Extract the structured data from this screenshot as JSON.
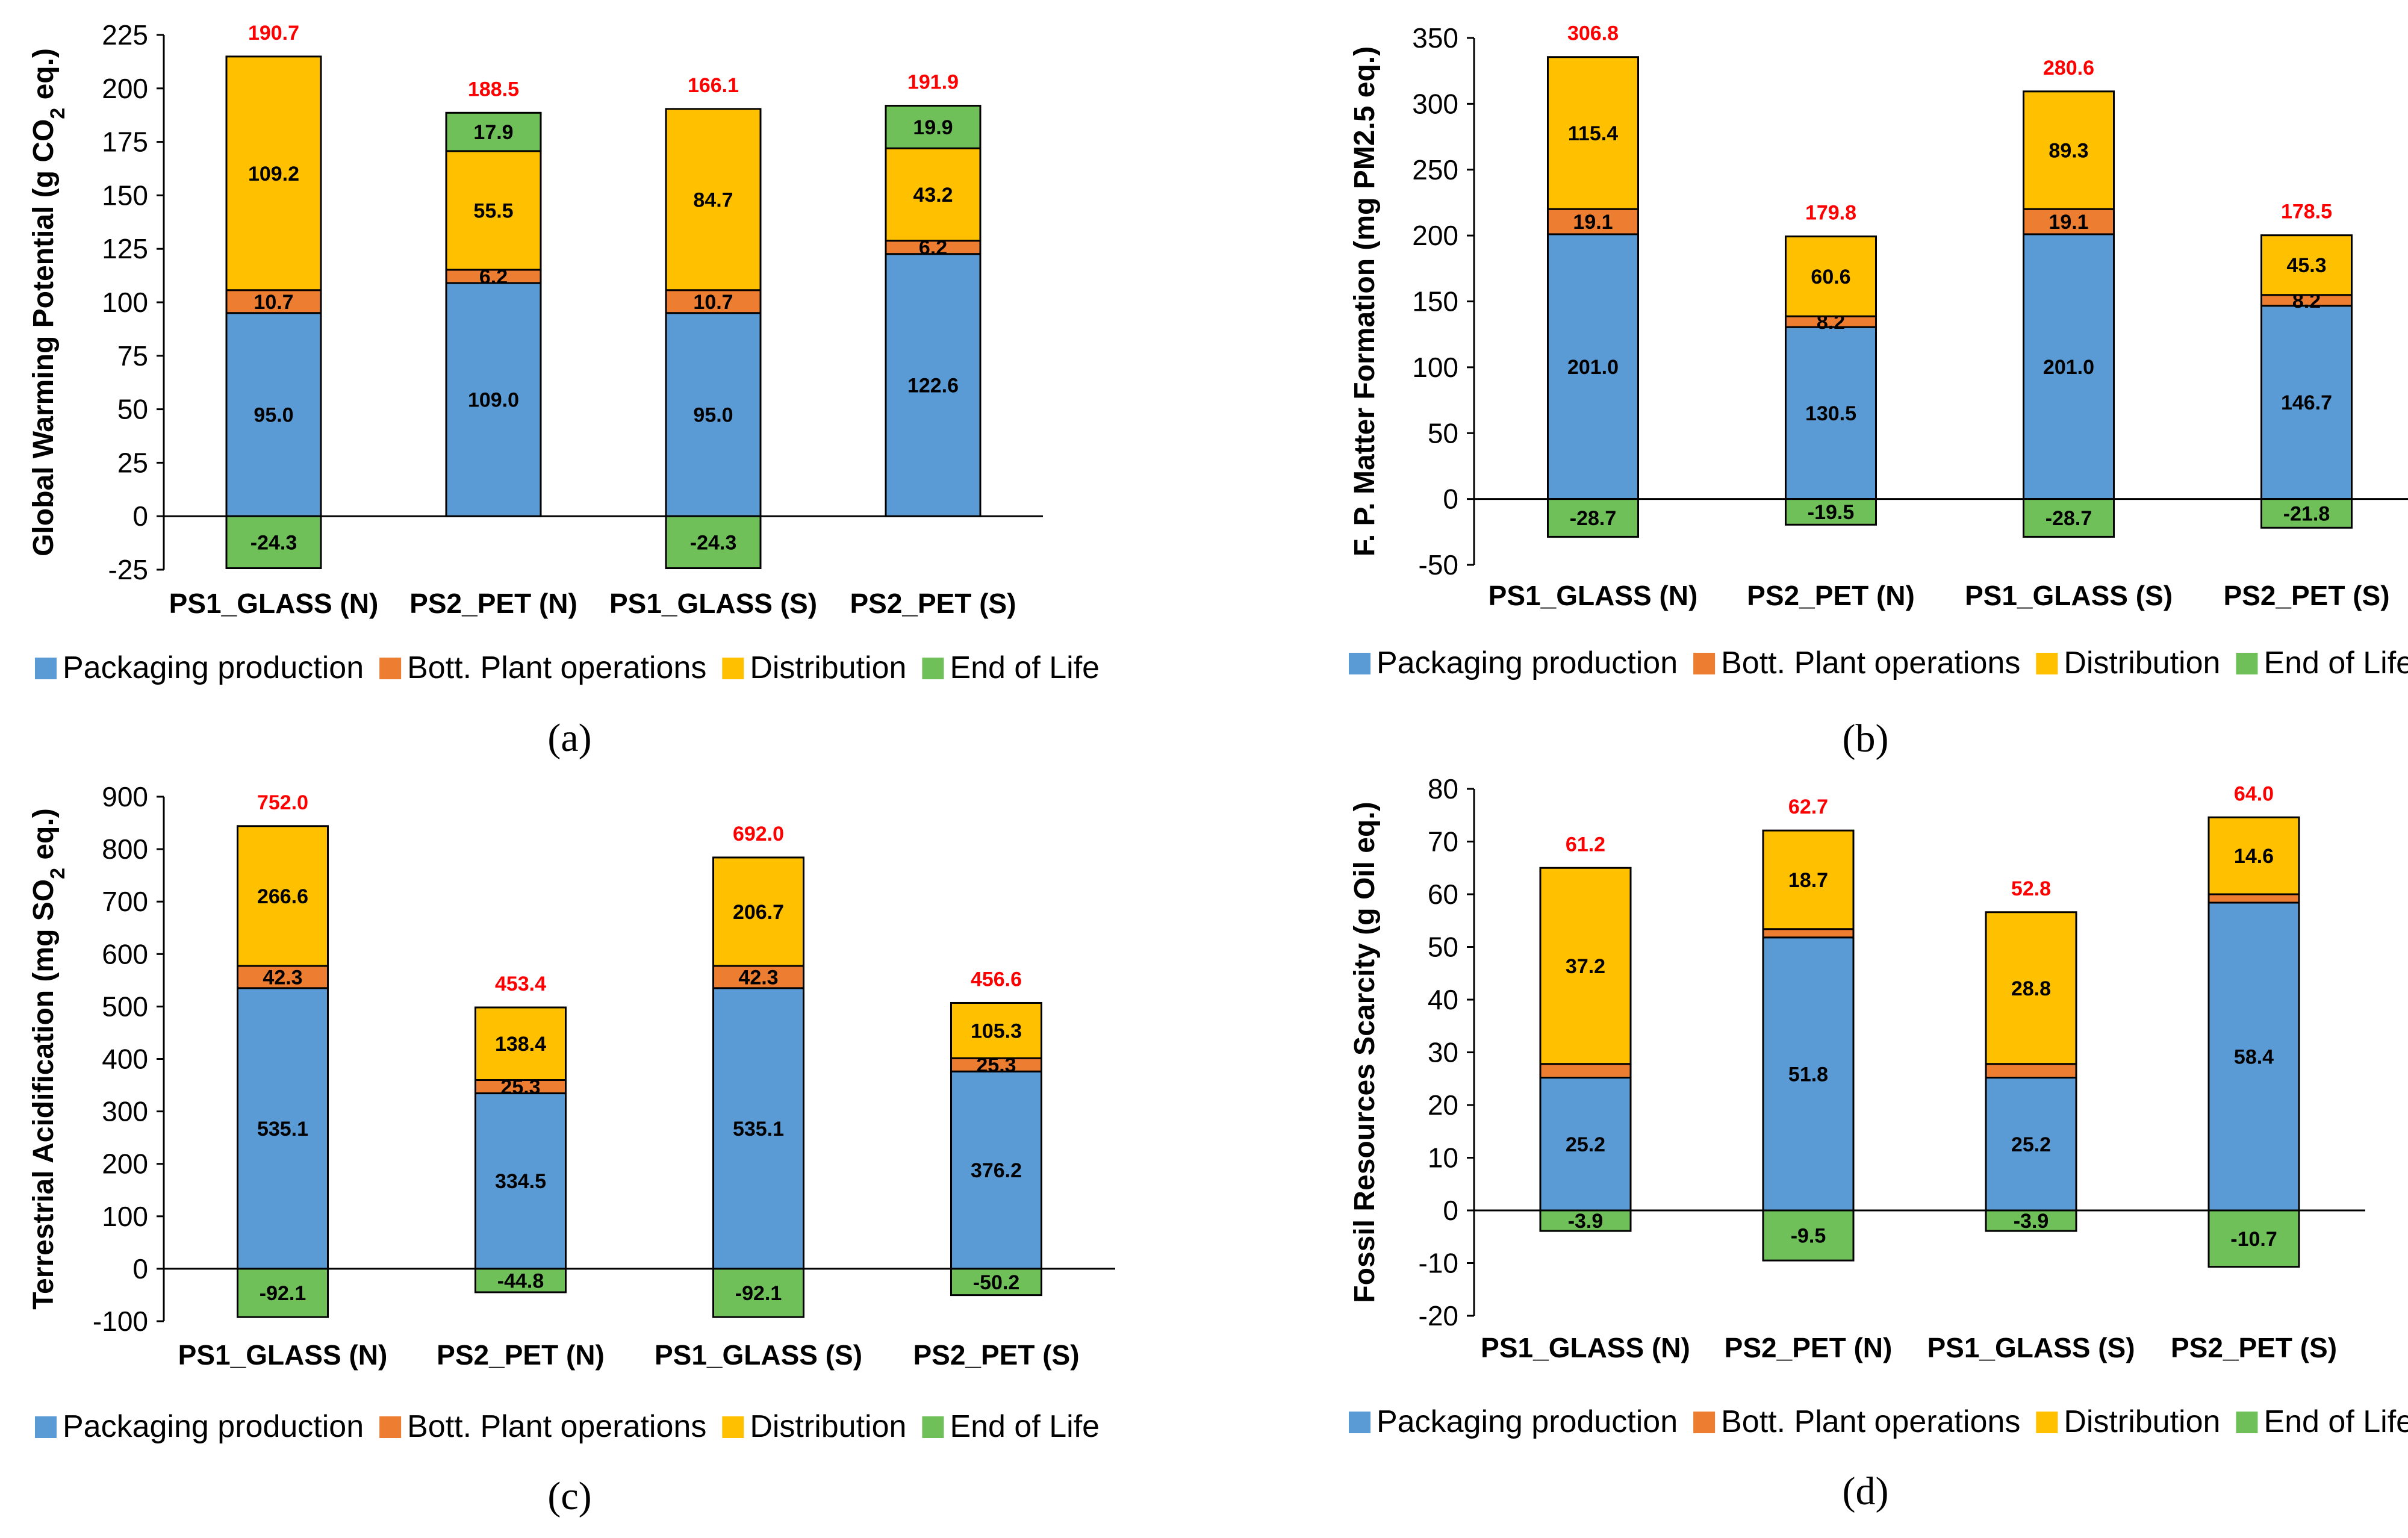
{
  "legend": [
    {
      "name": "Packaging production",
      "color": "#5b9bd5"
    },
    {
      "name": "Bott. Plant operations",
      "color": "#ed7d31"
    },
    {
      "name": "Distribution",
      "color": "#ffc000"
    },
    {
      "name": "End of Life",
      "color": "#70c05a"
    }
  ],
  "chart_data": [
    {
      "type": "bar",
      "panel": "(a)",
      "ylabel_html": "Global Warming Potential (g CO<tspan baseline-shift=\"sub\" font-size=\"34\">2</tspan> eq.)",
      "ylim": [
        -25,
        225
      ],
      "yticks": [
        -25,
        0,
        25,
        50,
        75,
        100,
        125,
        150,
        175,
        200,
        225
      ],
      "categories": [
        "PS1_GLASS (N)",
        "PS2_PET (N)",
        "PS1_GLASS (S)",
        "PS2_PET (S)"
      ],
      "series": [
        {
          "name": "Packaging production",
          "values": [
            95.0,
            109.0,
            95.0,
            122.6
          ],
          "labels": [
            "95.0",
            "109.0",
            "95.0",
            "122.6"
          ]
        },
        {
          "name": "Bott. Plant operations",
          "values": [
            10.7,
            6.2,
            10.7,
            6.2
          ],
          "labels": [
            "10.7",
            "6.2",
            "10.7",
            "6.2"
          ]
        },
        {
          "name": "Distribution",
          "values": [
            109.2,
            55.5,
            84.7,
            43.2
          ],
          "labels": [
            "109.2",
            "55.5",
            "84.7",
            "43.2"
          ]
        },
        {
          "name": "End of Life",
          "values": [
            -24.3,
            17.9,
            -24.3,
            19.9
          ],
          "labels": [
            "-24.3",
            "17.9",
            "-24.3",
            "19.9"
          ]
        }
      ],
      "totals": [
        "190.7",
        "188.5",
        "166.1",
        "191.9"
      ]
    },
    {
      "type": "bar",
      "panel": "(b)",
      "ylabel_html": "F. P. Matter Formation (mg PM2.5 eq.)",
      "ylim": [
        -50,
        350
      ],
      "yticks": [
        -50,
        0,
        50,
        100,
        150,
        200,
        250,
        300,
        350
      ],
      "categories": [
        "PS1_GLASS (N)",
        "PS2_PET (N)",
        "PS1_GLASS (S)",
        "PS2_PET (S)"
      ],
      "series": [
        {
          "name": "Packaging production",
          "values": [
            201.0,
            130.5,
            201.0,
            146.7
          ],
          "labels": [
            "201.0",
            "130.5",
            "201.0",
            "146.7"
          ]
        },
        {
          "name": "Bott. Plant operations",
          "values": [
            19.1,
            8.2,
            19.1,
            8.2
          ],
          "labels": [
            "19.1",
            "8.2",
            "19.1",
            "8.2"
          ]
        },
        {
          "name": "Distribution",
          "values": [
            115.4,
            60.6,
            89.3,
            45.3
          ],
          "labels": [
            "115.4",
            "60.6",
            "89.3",
            "45.3"
          ]
        },
        {
          "name": "End of Life",
          "values": [
            -28.7,
            -19.5,
            -28.7,
            -21.8
          ],
          "labels": [
            "-28.7",
            "-19.5",
            "-28.7",
            "-21.8"
          ]
        }
      ],
      "totals": [
        "306.8",
        "179.8",
        "280.6",
        "178.5"
      ]
    },
    {
      "type": "bar",
      "panel": "(c)",
      "ylabel_html": "Terrestrial Acidification (mg SO<tspan baseline-shift=\"sub\" font-size=\"34\">2</tspan> eq.)",
      "ylim": [
        -100,
        900
      ],
      "yticks": [
        -100,
        0,
        100,
        200,
        300,
        400,
        500,
        600,
        700,
        800,
        900
      ],
      "categories": [
        "PS1_GLASS (N)",
        "PS2_PET (N)",
        "PS1_GLASS (S)",
        "PS2_PET (S)"
      ],
      "series": [
        {
          "name": "Packaging production",
          "values": [
            535.1,
            334.5,
            535.1,
            376.2
          ],
          "labels": [
            "535.1",
            "334.5",
            "535.1",
            "376.2"
          ]
        },
        {
          "name": "Bott. Plant operations",
          "values": [
            42.3,
            25.3,
            42.3,
            25.3
          ],
          "labels": [
            "42.3",
            "25.3",
            "42.3",
            "25.3"
          ]
        },
        {
          "name": "Distribution",
          "values": [
            266.6,
            138.4,
            206.7,
            105.3
          ],
          "labels": [
            "266.6",
            "138.4",
            "206.7",
            "105.3"
          ]
        },
        {
          "name": "End of Life",
          "values": [
            -92.1,
            -44.8,
            -92.1,
            -50.2
          ],
          "labels": [
            "-92.1",
            "-44.8",
            "-92.1",
            "-50.2"
          ]
        }
      ],
      "totals": [
        "752.0",
        "453.4",
        "692.0",
        "456.6"
      ]
    },
    {
      "type": "bar",
      "panel": "(d)",
      "ylabel_html": "Fossil Resources Scarcity (g Oil eq.)",
      "ylim": [
        -20,
        80
      ],
      "yticks": [
        -20,
        -10,
        0,
        10,
        20,
        30,
        40,
        50,
        60,
        70,
        80
      ],
      "categories": [
        "PS1_GLASS (N)",
        "PS2_PET (N)",
        "PS1_GLASS (S)",
        "PS2_PET (S)"
      ],
      "series": [
        {
          "name": "Packaging production",
          "values": [
            25.2,
            51.8,
            25.2,
            58.4
          ],
          "labels": [
            "25.2",
            "51.8",
            "25.2",
            "58.4"
          ]
        },
        {
          "name": "Bott. Plant operations",
          "values": [
            2.6,
            1.6,
            2.6,
            1.6
          ],
          "labels": [
            "",
            "",
            "",
            ""
          ]
        },
        {
          "name": "Distribution",
          "values": [
            37.2,
            18.7,
            28.8,
            14.6
          ],
          "labels": [
            "37.2",
            "18.7",
            "28.8",
            "14.6"
          ]
        },
        {
          "name": "End of Life",
          "values": [
            -3.9,
            -9.5,
            -3.9,
            -10.7
          ],
          "labels": [
            "-3.9",
            "-9.5",
            "-3.9",
            "-10.7"
          ]
        }
      ],
      "totals": [
        "61.2",
        "62.7",
        "52.8",
        "64.0"
      ]
    }
  ]
}
